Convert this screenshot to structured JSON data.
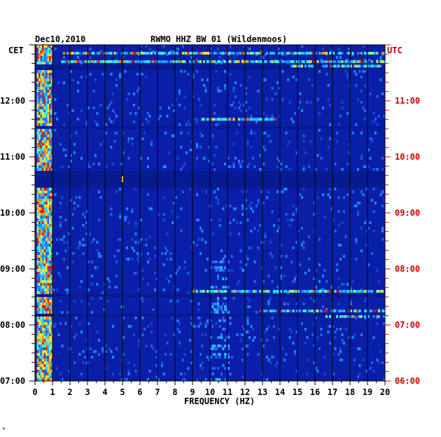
{
  "header": {
    "date": "Dec10,2010",
    "station": "RWMO HHZ BW 01 (Wildenmoos)"
  },
  "left_axis": {
    "timezone": "CET",
    "ticks": [
      "07:00",
      "08:00",
      "09:00",
      "10:00",
      "11:00",
      "12:00"
    ]
  },
  "right_axis": {
    "timezone": "UTC",
    "ticks": [
      "06:00",
      "07:00",
      "08:00",
      "09:00",
      "10:00",
      "11:00"
    ]
  },
  "footer_mark": "*",
  "colors": {
    "background": "#0a1fa8",
    "left_label": "#000000",
    "right_label": "#cc0000"
  },
  "chart_data": {
    "type": "heatmap",
    "xlabel": "FREQUENCY (HZ)",
    "x_ticks": [
      "0",
      "1",
      "2",
      "3",
      "4",
      "5",
      "6",
      "7",
      "8",
      "9",
      "10",
      "11",
      "12",
      "13",
      "14",
      "15",
      "16",
      "17",
      "18",
      "19",
      "20"
    ],
    "xlim": [
      0,
      20
    ],
    "ylim_cet_hours": [
      7.0,
      13.0
    ],
    "time_direction": "up",
    "vertical_gridlines_every_hz": 1,
    "data_gaps_cet_hours": [
      [
        10.5,
        10.75
      ],
      [
        11.55,
        11.6
      ],
      [
        8.2,
        8.22
      ],
      [
        8.55,
        8.57
      ],
      [
        12.6,
        12.65
      ]
    ],
    "persistent_band_hz": [
      0.1,
      0.9
    ],
    "intermittent_band_hz": [
      10.0,
      11.0
    ],
    "spike": {
      "freq_hz": 5.0,
      "cet_hour": 10.6
    },
    "bursts": [
      {
        "cet_hour": 12.85,
        "freq_from_hz": 1.4,
        "freq_to_hz": 20.0
      },
      {
        "cet_hour": 12.7,
        "freq_from_hz": 1.4,
        "freq_to_hz": 20.0
      },
      {
        "cet_hour": 12.62,
        "freq_from_hz": 14.6,
        "freq_to_hz": 20.0
      },
      {
        "cet_hour": 8.6,
        "freq_from_hz": 9.0,
        "freq_to_hz": 20.0
      },
      {
        "cet_hour": 8.25,
        "freq_from_hz": 12.8,
        "freq_to_hz": 20.0
      },
      {
        "cet_hour": 8.15,
        "freq_from_hz": 16.5,
        "freq_to_hz": 20.0
      },
      {
        "cet_hour": 11.67,
        "freq_from_hz": 9.5,
        "freq_to_hz": 13.8
      }
    ]
  }
}
